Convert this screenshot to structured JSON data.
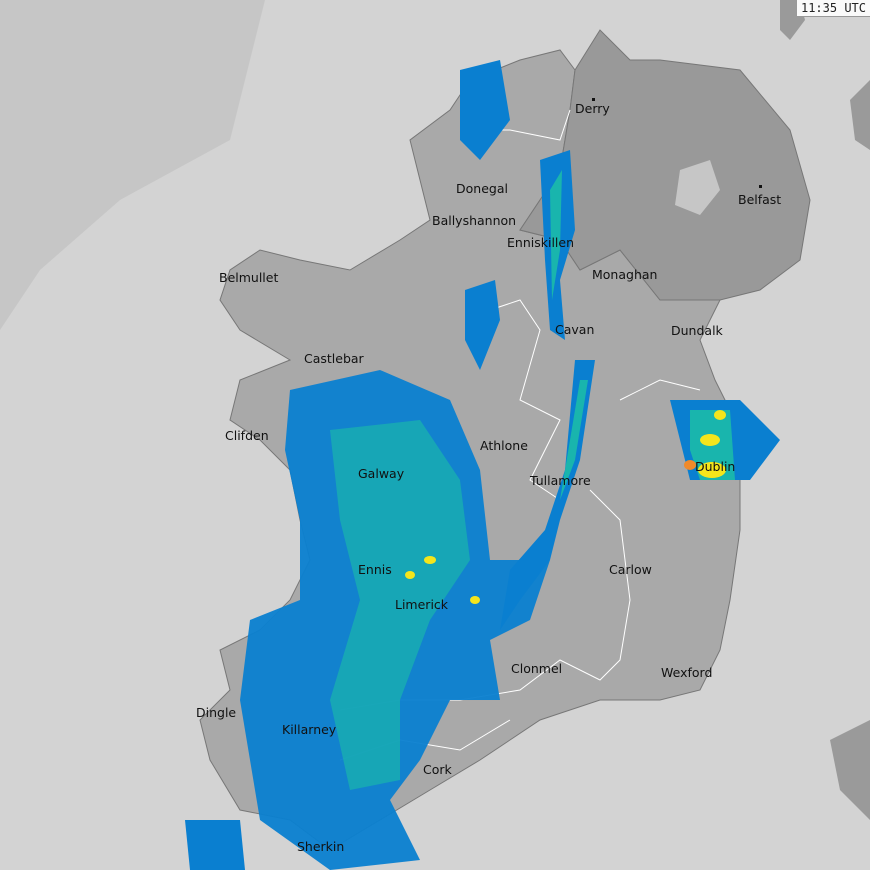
{
  "timestamp": "11:35 UTC",
  "colors": {
    "sea": "#d3d3d3",
    "out_of_range": "#c6c6c6",
    "land": "#a9a9a9",
    "northern_ireland": "#999999",
    "rain_light": "#0a7fd0",
    "rain_moderate": "#19b5ad",
    "rain_heavy": "#9fd63a",
    "rain_intense": "#f4e51c",
    "rain_extreme": "#f08a2a"
  },
  "cities": [
    {
      "name": "Derry"
    },
    {
      "name": "Donegal"
    },
    {
      "name": "Ballyshannon"
    },
    {
      "name": "Enniskillen"
    },
    {
      "name": "Belfast"
    },
    {
      "name": "Monaghan"
    },
    {
      "name": "Belmullet"
    },
    {
      "name": "Cavan"
    },
    {
      "name": "Dundalk"
    },
    {
      "name": "Castlebar"
    },
    {
      "name": "Clifden"
    },
    {
      "name": "Athlone"
    },
    {
      "name": "Dublin"
    },
    {
      "name": "Galway"
    },
    {
      "name": "Tullamore"
    },
    {
      "name": "Ennis"
    },
    {
      "name": "Carlow"
    },
    {
      "name": "Limerick"
    },
    {
      "name": "Clonmel"
    },
    {
      "name": "Wexford"
    },
    {
      "name": "Dingle"
    },
    {
      "name": "Killarney"
    },
    {
      "name": "Cork"
    },
    {
      "name": "Sherkin"
    }
  ]
}
